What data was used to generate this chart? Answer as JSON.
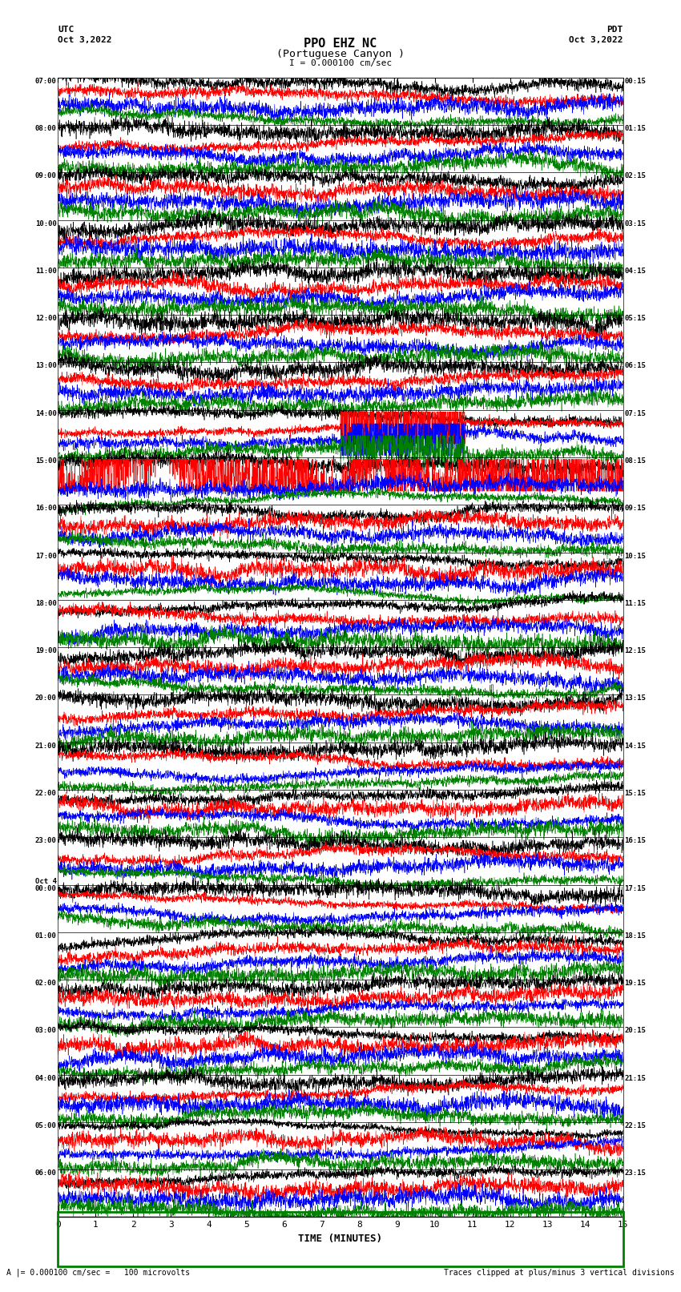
{
  "title_line1": "PPO EHZ NC",
  "title_line2": "(Portuguese Canyon )",
  "scale_text": "I = 0.000100 cm/sec",
  "utc_label": "UTC",
  "utc_date": "Oct 3,2022",
  "pdt_label": "PDT",
  "pdt_date": "Oct 3,2022",
  "xlabel": "TIME (MINUTES)",
  "footer_left": "A |= 0.000100 cm/sec =   100 microvolts",
  "footer_right": "Traces clipped at plus/minus 3 vertical divisions",
  "utc_times": [
    "07:00",
    "08:00",
    "09:00",
    "10:00",
    "11:00",
    "12:00",
    "13:00",
    "14:00",
    "15:00",
    "16:00",
    "17:00",
    "18:00",
    "19:00",
    "20:00",
    "21:00",
    "22:00",
    "23:00",
    "Oct 4\n00:00",
    "01:00",
    "02:00",
    "03:00",
    "04:00",
    "05:00",
    "06:00"
  ],
  "pdt_times": [
    "00:15",
    "01:15",
    "02:15",
    "03:15",
    "04:15",
    "05:15",
    "06:15",
    "07:15",
    "08:15",
    "09:15",
    "10:15",
    "11:15",
    "12:15",
    "13:15",
    "14:15",
    "15:15",
    "16:15",
    "17:15",
    "18:15",
    "19:15",
    "20:15",
    "21:15",
    "22:15",
    "23:15"
  ],
  "n_rows": 24,
  "n_traces": 4,
  "colors": [
    "black",
    "red",
    "blue",
    "green"
  ],
  "x_ticks": [
    0,
    1,
    2,
    3,
    4,
    5,
    6,
    7,
    8,
    9,
    10,
    11,
    12,
    13,
    14,
    15
  ],
  "x_min": 0,
  "x_max": 15,
  "bg_color": "white",
  "fig_width": 8.5,
  "fig_height": 16.13,
  "dpi": 100
}
